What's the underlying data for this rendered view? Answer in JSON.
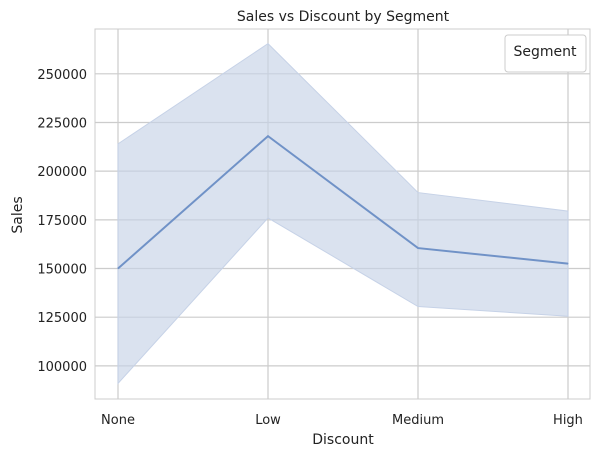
{
  "chart_data": {
    "type": "line",
    "title": "Sales vs Discount by Segment",
    "xlabel": "Discount",
    "ylabel": "Sales",
    "categories": [
      "None",
      "Low",
      "Medium",
      "High"
    ],
    "series": [
      {
        "values": [
          150000,
          218000,
          160500,
          152500
        ],
        "ci_lower": [
          91000,
          176000,
          130500,
          125500
        ],
        "ci_upper": [
          214000,
          265500,
          189000,
          179500
        ]
      }
    ],
    "ylim": [
      83000,
      273000
    ],
    "yticks": [
      100000,
      125000,
      150000,
      175000,
      200000,
      225000,
      250000
    ],
    "grid": true,
    "legend": {
      "title": "Segment",
      "position": "top-right"
    },
    "colors": {
      "line": "#7092c7",
      "band": "#c6d2e7",
      "grid": "#cccccc"
    }
  }
}
